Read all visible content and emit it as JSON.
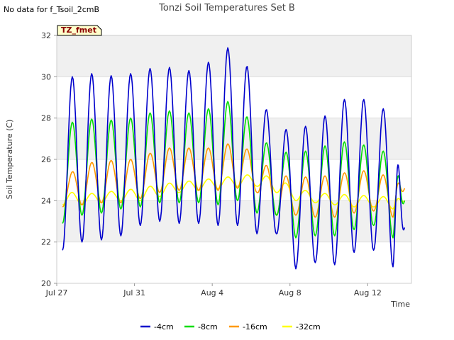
{
  "page": {
    "note": "No data for f_Tsoil_2cmB"
  },
  "chart_data": {
    "type": "line",
    "title": "Tonzi Soil Temperatures Set B",
    "xlabel": "Time",
    "ylabel": "Soil Temperature (C)",
    "ylim": [
      20,
      32
    ],
    "xlim_days": [
      0,
      18.25
    ],
    "y_ticks": [
      20,
      22,
      24,
      26,
      28,
      30,
      32
    ],
    "x_ticks": [
      {
        "day": 0,
        "label": "Jul 27"
      },
      {
        "day": 4,
        "label": "Jul 31"
      },
      {
        "day": 8,
        "label": "Aug 4"
      },
      {
        "day": 12,
        "label": "Aug 8"
      },
      {
        "day": 16,
        "label": "Aug 12"
      }
    ],
    "grid": "horizontal bands",
    "legend_placement": "bottom",
    "badge": {
      "label": "TZ_fmet",
      "background": "#ffffcc",
      "border": "#000000",
      "text_color": "#8b0000"
    },
    "series": [
      {
        "name": "-4cm",
        "color": "#0000cc",
        "daily": [
          {
            "day": 0.3,
            "min": 21.6,
            "max": 29.8
          },
          {
            "day": 1.3,
            "min": 22.0,
            "max": 30.2
          },
          {
            "day": 2.3,
            "min": 22.1,
            "max": 30.1
          },
          {
            "day": 3.3,
            "min": 22.3,
            "max": 30.0
          },
          {
            "day": 4.3,
            "min": 22.8,
            "max": 30.3
          },
          {
            "day": 5.3,
            "min": 23.0,
            "max": 30.5
          },
          {
            "day": 6.3,
            "min": 22.9,
            "max": 30.4
          },
          {
            "day": 7.3,
            "min": 22.9,
            "max": 30.2
          },
          {
            "day": 8.3,
            "min": 22.8,
            "max": 31.2
          },
          {
            "day": 9.3,
            "min": 22.8,
            "max": 31.6
          },
          {
            "day": 10.3,
            "min": 22.4,
            "max": 29.4
          },
          {
            "day": 11.3,
            "min": 22.4,
            "max": 27.4
          },
          {
            "day": 12.3,
            "min": 20.7,
            "max": 27.5
          },
          {
            "day": 13.3,
            "min": 21.0,
            "max": 27.7
          },
          {
            "day": 14.3,
            "min": 20.9,
            "max": 28.5
          },
          {
            "day": 15.3,
            "min": 21.5,
            "max": 29.3
          },
          {
            "day": 16.3,
            "min": 21.6,
            "max": 28.5
          },
          {
            "day": 17.3,
            "min": 20.8,
            "max": 28.4
          },
          {
            "day": 17.9,
            "min": 22.7,
            "max": 22.7
          }
        ]
      },
      {
        "name": "-8cm",
        "color": "#00dd00",
        "daily": [
          {
            "day": 0.3,
            "min": 22.9,
            "max": 27.6
          },
          {
            "day": 1.3,
            "min": 23.3,
            "max": 28.0
          },
          {
            "day": 2.3,
            "min": 23.4,
            "max": 27.9
          },
          {
            "day": 3.3,
            "min": 23.6,
            "max": 27.9
          },
          {
            "day": 4.3,
            "min": 23.7,
            "max": 28.1
          },
          {
            "day": 5.3,
            "min": 23.9,
            "max": 28.4
          },
          {
            "day": 6.3,
            "min": 23.9,
            "max": 28.3
          },
          {
            "day": 7.3,
            "min": 23.9,
            "max": 28.2
          },
          {
            "day": 8.3,
            "min": 23.8,
            "max": 28.7
          },
          {
            "day": 9.3,
            "min": 24.0,
            "max": 28.9
          },
          {
            "day": 10.3,
            "min": 23.4,
            "max": 27.2
          },
          {
            "day": 11.3,
            "min": 23.3,
            "max": 26.4
          },
          {
            "day": 12.3,
            "min": 22.2,
            "max": 26.3
          },
          {
            "day": 13.3,
            "min": 22.3,
            "max": 26.5
          },
          {
            "day": 14.3,
            "min": 22.3,
            "max": 26.8
          },
          {
            "day": 15.3,
            "min": 22.6,
            "max": 26.9
          },
          {
            "day": 16.3,
            "min": 22.8,
            "max": 26.5
          },
          {
            "day": 17.3,
            "min": 22.2,
            "max": 26.3
          },
          {
            "day": 17.9,
            "min": 24.0,
            "max": 24.0
          }
        ]
      },
      {
        "name": "-16cm",
        "color": "#ff9900",
        "daily": [
          {
            "day": 0.3,
            "min": 23.7,
            "max": 25.1
          },
          {
            "day": 1.3,
            "min": 23.8,
            "max": 25.7
          },
          {
            "day": 2.3,
            "min": 23.9,
            "max": 26.0
          },
          {
            "day": 3.3,
            "min": 23.9,
            "max": 25.9
          },
          {
            "day": 4.3,
            "min": 24.1,
            "max": 26.1
          },
          {
            "day": 5.3,
            "min": 24.4,
            "max": 26.5
          },
          {
            "day": 6.3,
            "min": 24.5,
            "max": 26.6
          },
          {
            "day": 7.3,
            "min": 24.5,
            "max": 26.5
          },
          {
            "day": 8.3,
            "min": 24.5,
            "max": 26.6
          },
          {
            "day": 9.3,
            "min": 24.6,
            "max": 26.9
          },
          {
            "day": 10.3,
            "min": 24.4,
            "max": 26.1
          },
          {
            "day": 11.3,
            "min": 23.3,
            "max": 25.3
          },
          {
            "day": 12.3,
            "min": 23.3,
            "max": 25.1
          },
          {
            "day": 13.3,
            "min": 23.2,
            "max": 25.2
          },
          {
            "day": 14.3,
            "min": 23.2,
            "max": 25.2
          },
          {
            "day": 15.3,
            "min": 23.4,
            "max": 25.5
          },
          {
            "day": 16.3,
            "min": 23.5,
            "max": 25.4
          },
          {
            "day": 17.3,
            "min": 23.2,
            "max": 25.1
          },
          {
            "day": 17.9,
            "min": 24.6,
            "max": 24.6
          }
        ]
      },
      {
        "name": "-32cm",
        "color": "#ffff00",
        "daily": [
          {
            "day": 0.3,
            "min": 23.8,
            "max": 24.5
          },
          {
            "day": 1.3,
            "min": 23.8,
            "max": 24.3
          },
          {
            "day": 2.3,
            "min": 23.9,
            "max": 24.4
          },
          {
            "day": 3.3,
            "min": 24.0,
            "max": 24.5
          },
          {
            "day": 4.3,
            "min": 24.0,
            "max": 24.6
          },
          {
            "day": 5.3,
            "min": 24.2,
            "max": 24.8
          },
          {
            "day": 6.3,
            "min": 24.4,
            "max": 24.9
          },
          {
            "day": 7.3,
            "min": 24.5,
            "max": 25.0
          },
          {
            "day": 8.3,
            "min": 24.6,
            "max": 25.1
          },
          {
            "day": 9.3,
            "min": 24.7,
            "max": 25.2
          },
          {
            "day": 10.3,
            "min": 24.7,
            "max": 25.3
          },
          {
            "day": 11.3,
            "min": 24.4,
            "max": 25.1
          },
          {
            "day": 12.3,
            "min": 24.0,
            "max": 24.6
          },
          {
            "day": 13.3,
            "min": 23.9,
            "max": 24.4
          },
          {
            "day": 14.3,
            "min": 23.8,
            "max": 24.3
          },
          {
            "day": 15.3,
            "min": 23.7,
            "max": 24.3
          },
          {
            "day": 16.3,
            "min": 23.7,
            "max": 24.2
          },
          {
            "day": 17.3,
            "min": 23.6,
            "max": 24.2
          },
          {
            "day": 17.9,
            "min": 24.0,
            "max": 24.0
          }
        ]
      }
    ]
  }
}
